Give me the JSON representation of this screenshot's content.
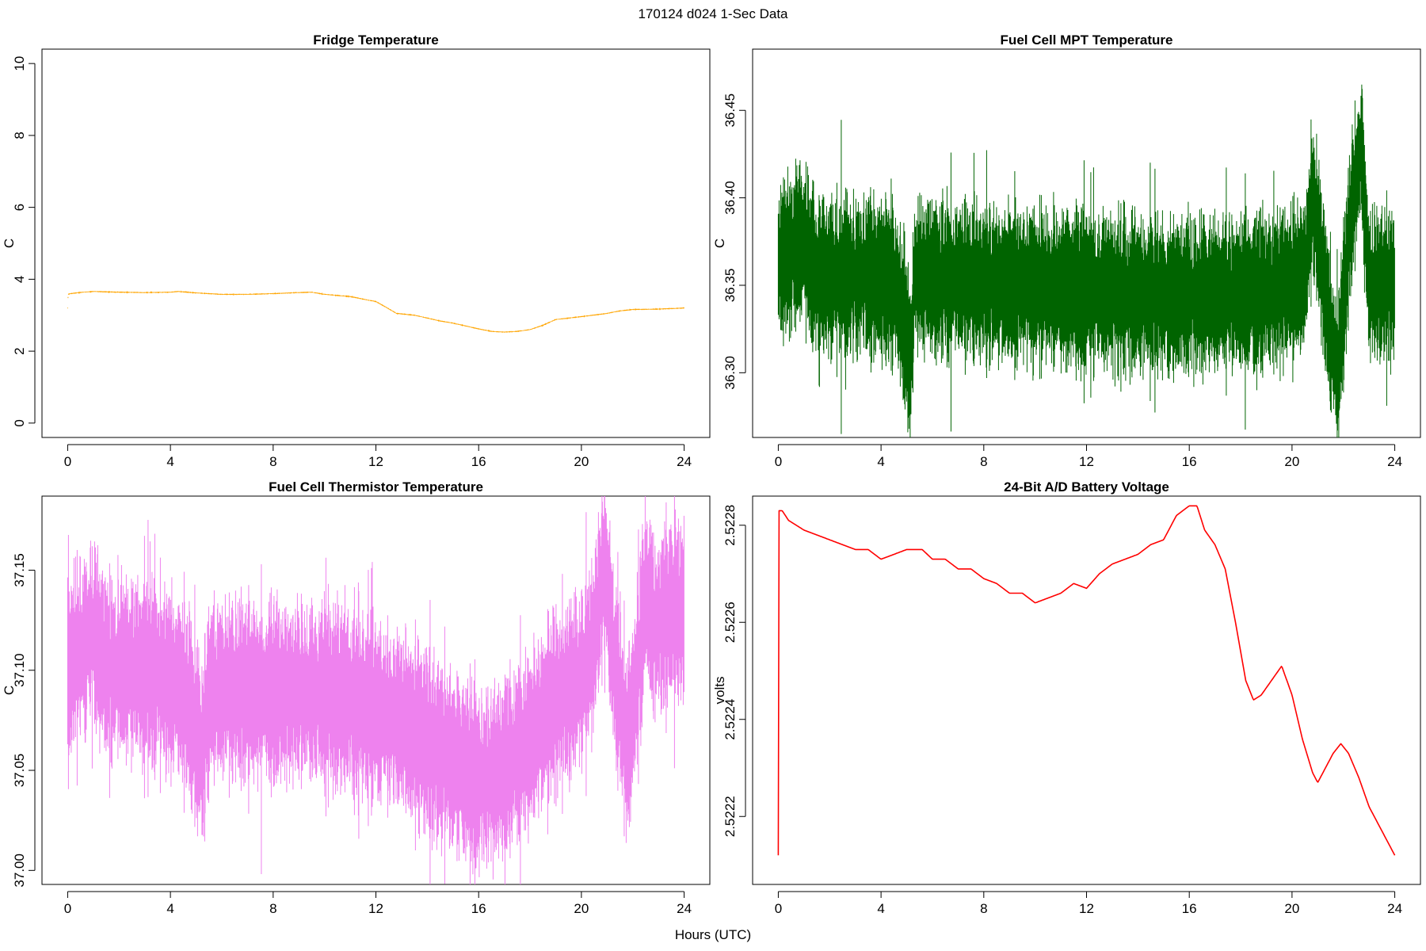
{
  "page": {
    "title": "170124   d024   1-Sec Data",
    "xlabel": "Hours (UTC)"
  },
  "chart_data": [
    {
      "type": "line",
      "title": "Fridge Temperature",
      "ylabel": "C",
      "color": "#FFA500",
      "xlim": [
        -1,
        25
      ],
      "ylim": [
        -0.4,
        10.4
      ],
      "xticks": [
        0,
        4,
        8,
        12,
        16,
        20,
        24
      ],
      "yticks": [
        0,
        2,
        4,
        6,
        8,
        10
      ],
      "ytick_labels": [
        "0",
        "2",
        "4",
        "6",
        "8",
        "10"
      ],
      "noise": 0.02,
      "x": [
        0,
        0.02,
        0.1,
        0.6,
        1.0,
        2.0,
        3.0,
        4.0,
        4.3,
        5.0,
        6.0,
        7.0,
        8.0,
        9.0,
        9.5,
        10.0,
        11.0,
        11.7,
        12.0,
        12.4,
        12.8,
        13.5,
        14.0,
        14.5,
        15.0,
        15.5,
        16.0,
        16.5,
        17.0,
        17.5,
        18.0,
        18.5,
        19.0,
        20.0,
        21.0,
        21.5,
        22.0,
        23.0,
        24.0
      ],
      "values": [
        3.2,
        3.58,
        3.6,
        3.64,
        3.66,
        3.64,
        3.63,
        3.64,
        3.66,
        3.62,
        3.58,
        3.58,
        3.6,
        3.63,
        3.64,
        3.58,
        3.52,
        3.42,
        3.38,
        3.22,
        3.05,
        3.0,
        2.92,
        2.84,
        2.78,
        2.7,
        2.62,
        2.55,
        2.53,
        2.55,
        2.6,
        2.72,
        2.88,
        2.96,
        3.05,
        3.12,
        3.16,
        3.17,
        3.2
      ]
    },
    {
      "type": "line",
      "title": "Fuel Cell MPT Temperature",
      "ylabel": "C",
      "color": "#006400",
      "xlim": [
        -1,
        25
      ],
      "ylim": [
        36.263,
        36.485
      ],
      "xticks": [
        0,
        4,
        8,
        12,
        16,
        20,
        24
      ],
      "yticks": [
        36.3,
        36.35,
        36.4,
        36.45
      ],
      "ytick_labels": [
        "36.30",
        "36.35",
        "36.40",
        "36.45"
      ],
      "noise": 0.055,
      "x": [
        0,
        0.5,
        1.0,
        1.5,
        2.0,
        3.0,
        4.0,
        4.5,
        4.9,
        5.15,
        5.3,
        6.0,
        8.0,
        10.0,
        12.0,
        14.0,
        16.0,
        18.0,
        20.0,
        20.5,
        20.8,
        21.1,
        21.5,
        21.8,
        22.0,
        22.3,
        22.7,
        23.0,
        24.0
      ],
      "values": [
        36.36,
        36.37,
        36.375,
        36.355,
        36.355,
        36.355,
        36.355,
        36.35,
        36.33,
        36.3,
        36.355,
        36.355,
        36.352,
        36.35,
        36.348,
        36.345,
        36.344,
        36.345,
        36.35,
        36.355,
        36.4,
        36.37,
        36.32,
        36.3,
        36.34,
        36.39,
        36.43,
        36.35,
        36.35
      ]
    },
    {
      "type": "line",
      "title": "Fuel Cell Thermistor Temperature",
      "ylabel": "C",
      "color": "#EE82EE",
      "xlim": [
        -1,
        25
      ],
      "ylim": [
        36.993,
        37.187
      ],
      "xticks": [
        0,
        4,
        8,
        12,
        16,
        20,
        24
      ],
      "yticks": [
        37.0,
        37.05,
        37.1,
        37.15
      ],
      "ytick_labels": [
        "37.00",
        "37.05",
        "37.10",
        "37.15"
      ],
      "noise": 0.055,
      "x": [
        0,
        0.5,
        1.0,
        1.5,
        2.5,
        3.5,
        4.5,
        5.0,
        5.2,
        5.6,
        6.0,
        8.0,
        10.0,
        11.0,
        12.0,
        13.0,
        14.0,
        15.0,
        16.0,
        17.0,
        18.0,
        19.0,
        20.0,
        20.5,
        20.9,
        21.3,
        21.8,
        22.2,
        22.5,
        22.8,
        23.5,
        24.0
      ],
      "values": [
        37.1,
        37.11,
        37.12,
        37.1,
        37.1,
        37.1,
        37.09,
        37.07,
        37.06,
        37.09,
        37.09,
        37.088,
        37.088,
        37.085,
        37.08,
        37.075,
        37.065,
        37.055,
        37.045,
        37.05,
        37.065,
        37.085,
        37.095,
        37.115,
        37.155,
        37.1,
        37.06,
        37.1,
        37.14,
        37.12,
        37.13,
        37.13
      ]
    },
    {
      "type": "line",
      "title": "24-Bit A/D Battery Voltage",
      "ylabel": "volts",
      "color": "#FF0000",
      "xlim": [
        -1,
        25
      ],
      "ylim": [
        2.52206,
        2.52286
      ],
      "xticks": [
        0,
        4,
        8,
        12,
        16,
        20,
        24
      ],
      "yticks": [
        2.5222,
        2.5224,
        2.5226,
        2.5228
      ],
      "ytick_labels": [
        "2.5222",
        "2.5224",
        "2.5226",
        "2.5228"
      ],
      "noise": 0.0,
      "x": [
        0,
        0.02,
        0.15,
        0.4,
        1.0,
        1.5,
        2.0,
        2.5,
        3.0,
        3.5,
        4.0,
        4.5,
        5.0,
        5.6,
        6.0,
        6.5,
        7.0,
        7.5,
        8.0,
        8.5,
        9.0,
        9.5,
        10.0,
        10.5,
        11.0,
        11.5,
        12.0,
        12.5,
        13.0,
        13.5,
        14.0,
        14.5,
        15.0,
        15.5,
        16.0,
        16.3,
        16.6,
        17.0,
        17.4,
        17.8,
        18.2,
        18.5,
        18.8,
        19.2,
        19.6,
        20.0,
        20.4,
        20.8,
        21.0,
        21.3,
        21.6,
        21.9,
        22.2,
        22.6,
        23.0,
        23.5,
        24.0
      ],
      "values": [
        2.52212,
        2.52283,
        2.52283,
        2.52281,
        2.52279,
        2.52278,
        2.52277,
        2.52276,
        2.52275,
        2.52275,
        2.52273,
        2.52274,
        2.52275,
        2.52275,
        2.52273,
        2.52273,
        2.52271,
        2.52271,
        2.52269,
        2.52268,
        2.52266,
        2.52266,
        2.52264,
        2.52265,
        2.52266,
        2.52268,
        2.52267,
        2.5227,
        2.52272,
        2.52273,
        2.52274,
        2.52276,
        2.52277,
        2.52282,
        2.52284,
        2.52284,
        2.52279,
        2.52276,
        2.52271,
        2.5226,
        2.52248,
        2.52244,
        2.52245,
        2.52248,
        2.52251,
        2.52245,
        2.52236,
        2.52229,
        2.52227,
        2.5223,
        2.52233,
        2.52235,
        2.52233,
        2.52228,
        2.52222,
        2.52217,
        2.52212
      ]
    }
  ]
}
